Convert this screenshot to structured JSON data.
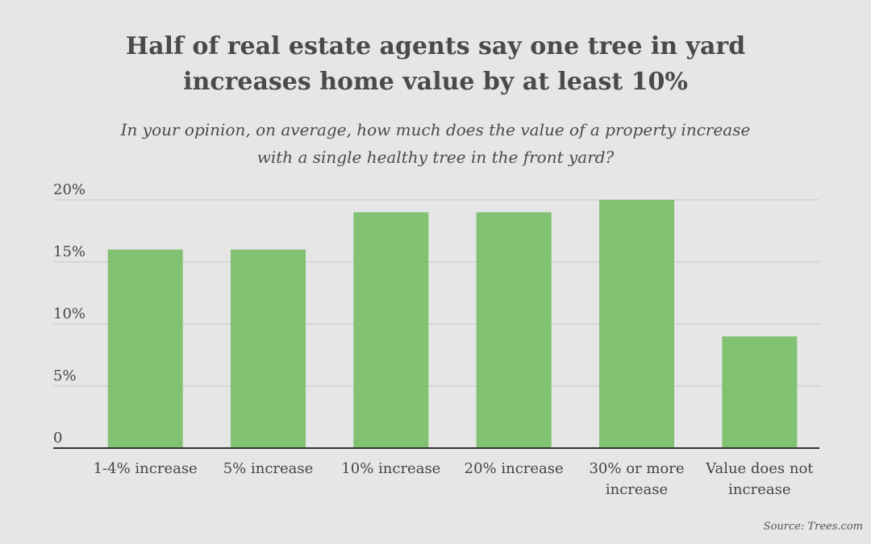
{
  "title": {
    "line1": "Half of real estate agents say one tree in yard",
    "line2": "increases home value by at least 10%"
  },
  "subtitle": {
    "line1": "In your opinion, on average, how much does the value of a property increase",
    "line2": "with a single healthy tree in the front yard?"
  },
  "source": "Source: Trees.com",
  "colors": {
    "bar": "#80c172",
    "grid": "#cccccc",
    "axis": "#333333",
    "text": "#444444"
  },
  "chart_data": {
    "type": "bar",
    "categories": [
      [
        "1-4% increase"
      ],
      [
        "5% increase"
      ],
      [
        "10% increase"
      ],
      [
        "20% increase"
      ],
      [
        "30% or more",
        "increase"
      ],
      [
        "Value does not",
        "increase"
      ]
    ],
    "values": [
      16,
      16,
      19,
      19,
      20,
      9
    ],
    "ylim": [
      0,
      20
    ],
    "yticks": [
      0,
      5,
      10,
      15,
      20
    ],
    "ytick_labels": [
      "0",
      "5%",
      "10%",
      "15%",
      "20%"
    ],
    "grid": true
  }
}
